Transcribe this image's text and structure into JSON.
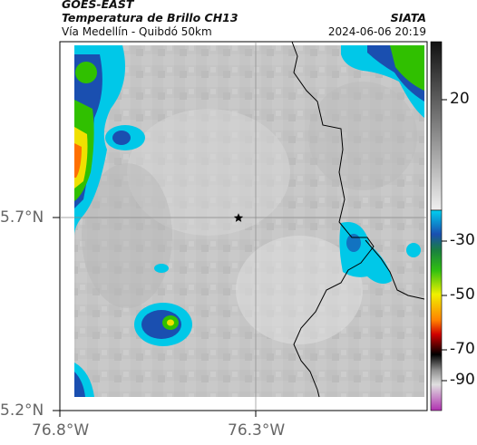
{
  "header": {
    "satellite": "GOES-EAST",
    "product": "Temperatura de Brillo CH13",
    "route": "Vía Medellín - Quibdó 50km",
    "agency": "SIATA",
    "datetime": "2024-06-06 20:19"
  },
  "axes": {
    "lat_ticks": [
      "5.7°N",
      "5.2°N"
    ],
    "lon_ticks": [
      "76.8°W",
      "76.3°W"
    ]
  },
  "colorbar": {
    "tick_labels": [
      "20",
      "-30",
      "-50",
      "-70",
      "-90"
    ],
    "colors": {
      "warm_gray_low": "#eeeeee",
      "gray_top": "#111111",
      "cyan": "#00c8e8",
      "blue": "#1a4fb0",
      "green": "#22c000",
      "yellow": "#f0f000",
      "orange": "#ff7000",
      "red": "#c80000",
      "black": "#000000",
      "magenta": "#c040c0"
    }
  },
  "marker": {
    "icon": "star-icon"
  }
}
